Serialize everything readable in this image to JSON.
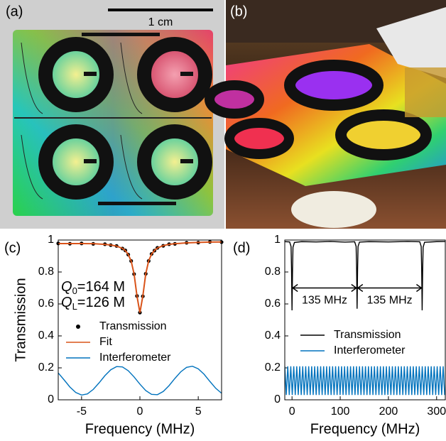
{
  "panels": {
    "a": {
      "label": "(a)",
      "scale_bar": "1 cm"
    },
    "b": {
      "label": "(b)"
    }
  },
  "chart_data": [
    {
      "type": "line",
      "label": "(c)",
      "x_label": "Frequency (MHz)",
      "y_label": "Transmission",
      "xlim": [
        -7,
        7
      ],
      "xticks": [
        -5,
        0,
        5
      ],
      "ylim": [
        0,
        1
      ],
      "yticks": [
        0,
        0.2,
        0.4,
        0.6,
        0.8,
        1
      ],
      "grid": false,
      "legend": "center",
      "annotations": [
        {
          "symbol": "Q",
          "subscript": "0",
          "text": "=164 M"
        },
        {
          "symbol": "Q",
          "subscript": "L",
          "text": "=126 M"
        }
      ],
      "series": [
        {
          "name": "Transmission",
          "color": "#000000",
          "style": "dots",
          "x": [
            -7,
            -6,
            -5,
            -4,
            -3,
            -2.5,
            -2,
            -1.5,
            -1.25,
            -1,
            -0.75,
            -0.5,
            -0.25,
            0,
            0.25,
            0.5,
            0.75,
            1,
            1.25,
            1.5,
            2,
            2.5,
            3,
            4,
            5,
            6,
            7
          ],
          "values": [
            0.979,
            0.977,
            0.979,
            0.976,
            0.974,
            0.968,
            0.963,
            0.947,
            0.935,
            0.909,
            0.869,
            0.787,
            0.65,
            0.546,
            0.648,
            0.789,
            0.869,
            0.913,
            0.934,
            0.951,
            0.964,
            0.974,
            0.976,
            0.983,
            0.984,
            0.988,
            0.987
          ]
        },
        {
          "name": "Fit",
          "color": "#d95319",
          "style": "line",
          "x": [
            -7,
            -6,
            -5,
            -4,
            -3,
            -2.5,
            -2,
            -1.5,
            -1.25,
            -1,
            -0.75,
            -0.5,
            -0.25,
            0,
            0.25,
            0.5,
            0.75,
            1,
            1.25,
            1.5,
            2,
            2.5,
            3,
            4,
            5,
            6,
            7
          ],
          "values": [
            0.978,
            0.978,
            0.978,
            0.977,
            0.973,
            0.969,
            0.962,
            0.948,
            0.934,
            0.91,
            0.868,
            0.788,
            0.649,
            0.545,
            0.649,
            0.788,
            0.87,
            0.912,
            0.935,
            0.95,
            0.965,
            0.973,
            0.977,
            0.982,
            0.985,
            0.987,
            0.988
          ]
        },
        {
          "name": "Interferometer",
          "color": "#0072bd",
          "style": "line",
          "x": [
            -7,
            -6.5,
            -6,
            -5.5,
            -5,
            -4.5,
            -4,
            -3.5,
            -3,
            -2.5,
            -2,
            -1.5,
            -1,
            -0.5,
            0,
            0.5,
            1,
            1.5,
            2,
            2.5,
            3,
            3.5,
            4,
            4.5,
            5,
            5.5,
            6,
            6.5,
            7
          ],
          "values": [
            0.168,
            0.125,
            0.08,
            0.046,
            0.03,
            0.037,
            0.065,
            0.106,
            0.151,
            0.188,
            0.208,
            0.206,
            0.182,
            0.143,
            0.098,
            0.058,
            0.034,
            0.032,
            0.052,
            0.089,
            0.134,
            0.175,
            0.203,
            0.21,
            0.194,
            0.16,
            0.115,
            0.072,
            0.041
          ]
        }
      ]
    },
    {
      "type": "line",
      "label": "(d)",
      "x_label": "Frequency (MHz)",
      "xlim": [
        -15,
        318
      ],
      "xticks": [
        0,
        100,
        200,
        300
      ],
      "ylim": [
        0,
        1
      ],
      "yticks": [
        0,
        0.2,
        0.4,
        0.6,
        0.8,
        1
      ],
      "grid": false,
      "legend": "center",
      "arrows": [
        {
          "text": "135 MHz",
          "x1": 0,
          "x2": 135,
          "y": 0.7
        },
        {
          "text": "135 MHz",
          "x1": 135,
          "x2": 270,
          "y": 0.7
        }
      ],
      "series": [
        {
          "name": "Transmission",
          "color": "#000000",
          "style": "line",
          "x": [
            -15,
            -5,
            -2,
            -1,
            0,
            1,
            2,
            5,
            20,
            50,
            80,
            110,
            130,
            133,
            134,
            135,
            136,
            137,
            140,
            160,
            200,
            240,
            265,
            268,
            269,
            270,
            271,
            272,
            275,
            300,
            318
          ],
          "values": [
            0.99,
            0.988,
            0.96,
            0.82,
            0.56,
            0.8,
            0.955,
            0.985,
            0.99,
            0.988,
            0.991,
            0.987,
            0.989,
            0.96,
            0.83,
            0.57,
            0.81,
            0.96,
            0.987,
            0.99,
            0.988,
            0.991,
            0.989,
            0.96,
            0.82,
            0.56,
            0.8,
            0.955,
            0.986,
            0.99,
            0.991
          ]
        },
        {
          "name": "Interferometer",
          "color": "#0072bd",
          "style": "line",
          "x": [
            -15,
            -11.9,
            -8.8,
            -5.7,
            -2.6,
            0.5,
            3.6,
            6.7,
            9.8,
            12.9,
            16,
            19.1,
            22.2,
            25.3,
            28.4,
            31.5,
            34.6,
            37.7,
            40.8,
            43.9,
            47,
            50.1,
            53.2,
            56.3,
            59.4,
            62.5,
            65.6,
            68.7,
            71.8,
            74.9,
            78,
            81.1,
            84.2,
            87.3,
            90.4,
            93.5,
            96.6,
            99.7,
            102.8,
            105.9,
            109,
            112.1,
            115.2,
            118.3,
            121.4,
            124.5,
            127.6,
            130.7,
            133.8,
            136.9,
            140,
            143.1,
            146.2,
            149.3,
            152.4,
            155.5,
            158.6,
            161.7,
            164.8,
            167.9,
            171,
            174.1,
            177.2,
            180.3,
            183.4,
            186.5,
            189.6,
            192.7,
            195.8,
            198.9,
            202,
            205.1,
            208.2,
            211.3,
            214.4,
            217.5,
            220.6,
            223.7,
            226.8,
            229.9,
            233,
            236.1,
            239.2,
            242.3,
            245.4,
            248.5,
            251.6,
            254.7,
            257.8,
            260.9,
            264,
            267.1,
            270.2,
            273.3,
            276.4,
            279.5,
            282.6,
            285.7,
            288.8,
            291.9,
            295,
            298.1,
            301.2,
            304.3,
            307.4,
            310.5,
            313.6,
            316.7
          ],
          "values": [
            0.21,
            0.03,
            0.21,
            0.03,
            0.21,
            0.03,
            0.21,
            0.03,
            0.21,
            0.03,
            0.21,
            0.03,
            0.21,
            0.03,
            0.21,
            0.03,
            0.21,
            0.03,
            0.21,
            0.03,
            0.21,
            0.03,
            0.21,
            0.03,
            0.21,
            0.03,
            0.21,
            0.03,
            0.21,
            0.03,
            0.21,
            0.03,
            0.21,
            0.03,
            0.21,
            0.03,
            0.21,
            0.03,
            0.21,
            0.03,
            0.21,
            0.03,
            0.21,
            0.03,
            0.21,
            0.03,
            0.21,
            0.03,
            0.21,
            0.03,
            0.21,
            0.03,
            0.21,
            0.03,
            0.21,
            0.03,
            0.21,
            0.03,
            0.21,
            0.03,
            0.21,
            0.03,
            0.21,
            0.03,
            0.21,
            0.03,
            0.21,
            0.03,
            0.21,
            0.03,
            0.21,
            0.03,
            0.21,
            0.03,
            0.21,
            0.03,
            0.21,
            0.03,
            0.21,
            0.03,
            0.21,
            0.03,
            0.21,
            0.03,
            0.21,
            0.03,
            0.21,
            0.03,
            0.21,
            0.03,
            0.21,
            0.03,
            0.21,
            0.03,
            0.21,
            0.03,
            0.21,
            0.03,
            0.21,
            0.03,
            0.21,
            0.03,
            0.21,
            0.03,
            0.21,
            0.03,
            0.21,
            0.03
          ]
        }
      ]
    }
  ]
}
